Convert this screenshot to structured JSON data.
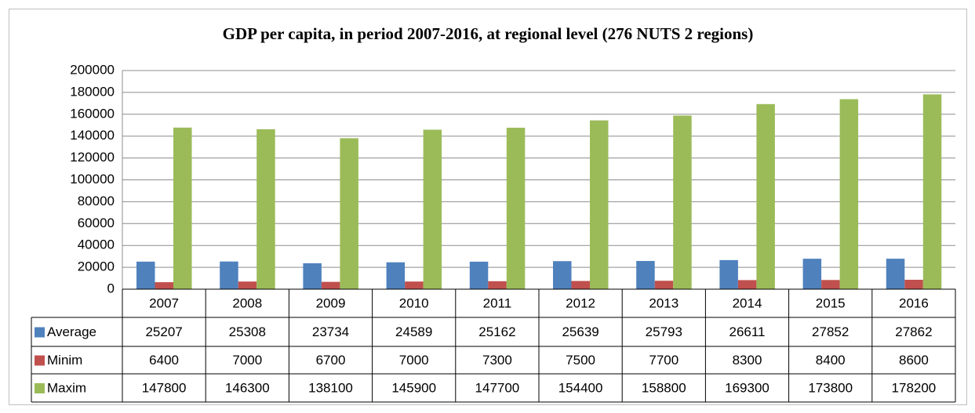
{
  "chart_data": {
    "type": "bar",
    "title": "GDP per capita, in period 2007-2016, at regional level (276 NUTS 2 regions)",
    "categories": [
      "2007",
      "2008",
      "2009",
      "2010",
      "2011",
      "2012",
      "2013",
      "2014",
      "2015",
      "2016"
    ],
    "series": [
      {
        "name": "Average",
        "color": "#4f81bd",
        "values": [
          25207,
          25308,
          23734,
          24589,
          25162,
          25639,
          25793,
          26611,
          27852,
          27862
        ]
      },
      {
        "name": "Minim",
        "color": "#c0504d",
        "values": [
          6400,
          7000,
          6700,
          7000,
          7300,
          7500,
          7700,
          8300,
          8400,
          8600
        ]
      },
      {
        "name": "Maxim",
        "color": "#9bbb59",
        "values": [
          147800,
          146300,
          138100,
          145900,
          147700,
          154400,
          158800,
          169300,
          173800,
          178200
        ]
      }
    ],
    "ylim": [
      0,
      200000
    ],
    "yticks": [
      0,
      20000,
      40000,
      60000,
      80000,
      100000,
      120000,
      140000,
      160000,
      180000,
      200000
    ],
    "grid": true
  }
}
